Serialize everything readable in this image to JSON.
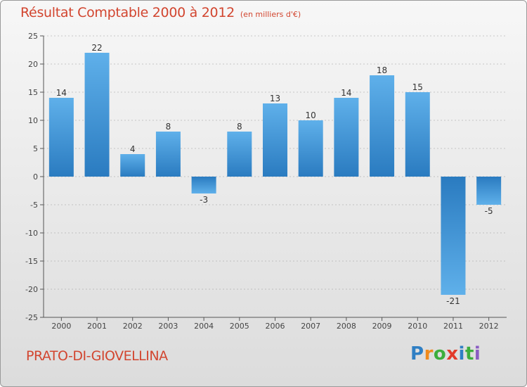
{
  "title": "Résultat Comptable 2000 à 2012",
  "unit": "(en milliers d'€)",
  "commune": "PRATO-DI-GIOVELLINA",
  "logo": {
    "letters": [
      "P",
      "r",
      "o",
      "x",
      "i",
      "t",
      "i"
    ],
    "colors": [
      "#2f7fc4",
      "#f08a1c",
      "#3cae3c",
      "#e23a2a",
      "#2f7fc4",
      "#3cae3c",
      "#8a5cc2"
    ]
  },
  "colors": {
    "bar_top": "#5fb0ea",
    "bar_bottom": "#2a7bc0",
    "grid": "#9a9a9a"
  },
  "chart_data": {
    "type": "bar",
    "title": "Résultat Comptable 2000 à 2012",
    "ylabel": "",
    "xlabel": "",
    "categories": [
      "2000",
      "2001",
      "2002",
      "2003",
      "2004",
      "2005",
      "2006",
      "2007",
      "2008",
      "2009",
      "2010",
      "2011",
      "2012"
    ],
    "values": [
      14,
      22,
      4,
      8,
      -3,
      8,
      13,
      10,
      14,
      18,
      15,
      -21,
      -5
    ],
    "ylim": [
      -25,
      25
    ],
    "yticks": [
      25,
      20,
      15,
      10,
      5,
      0,
      -5,
      -10,
      -15,
      -20,
      -25
    ],
    "grid": true
  }
}
